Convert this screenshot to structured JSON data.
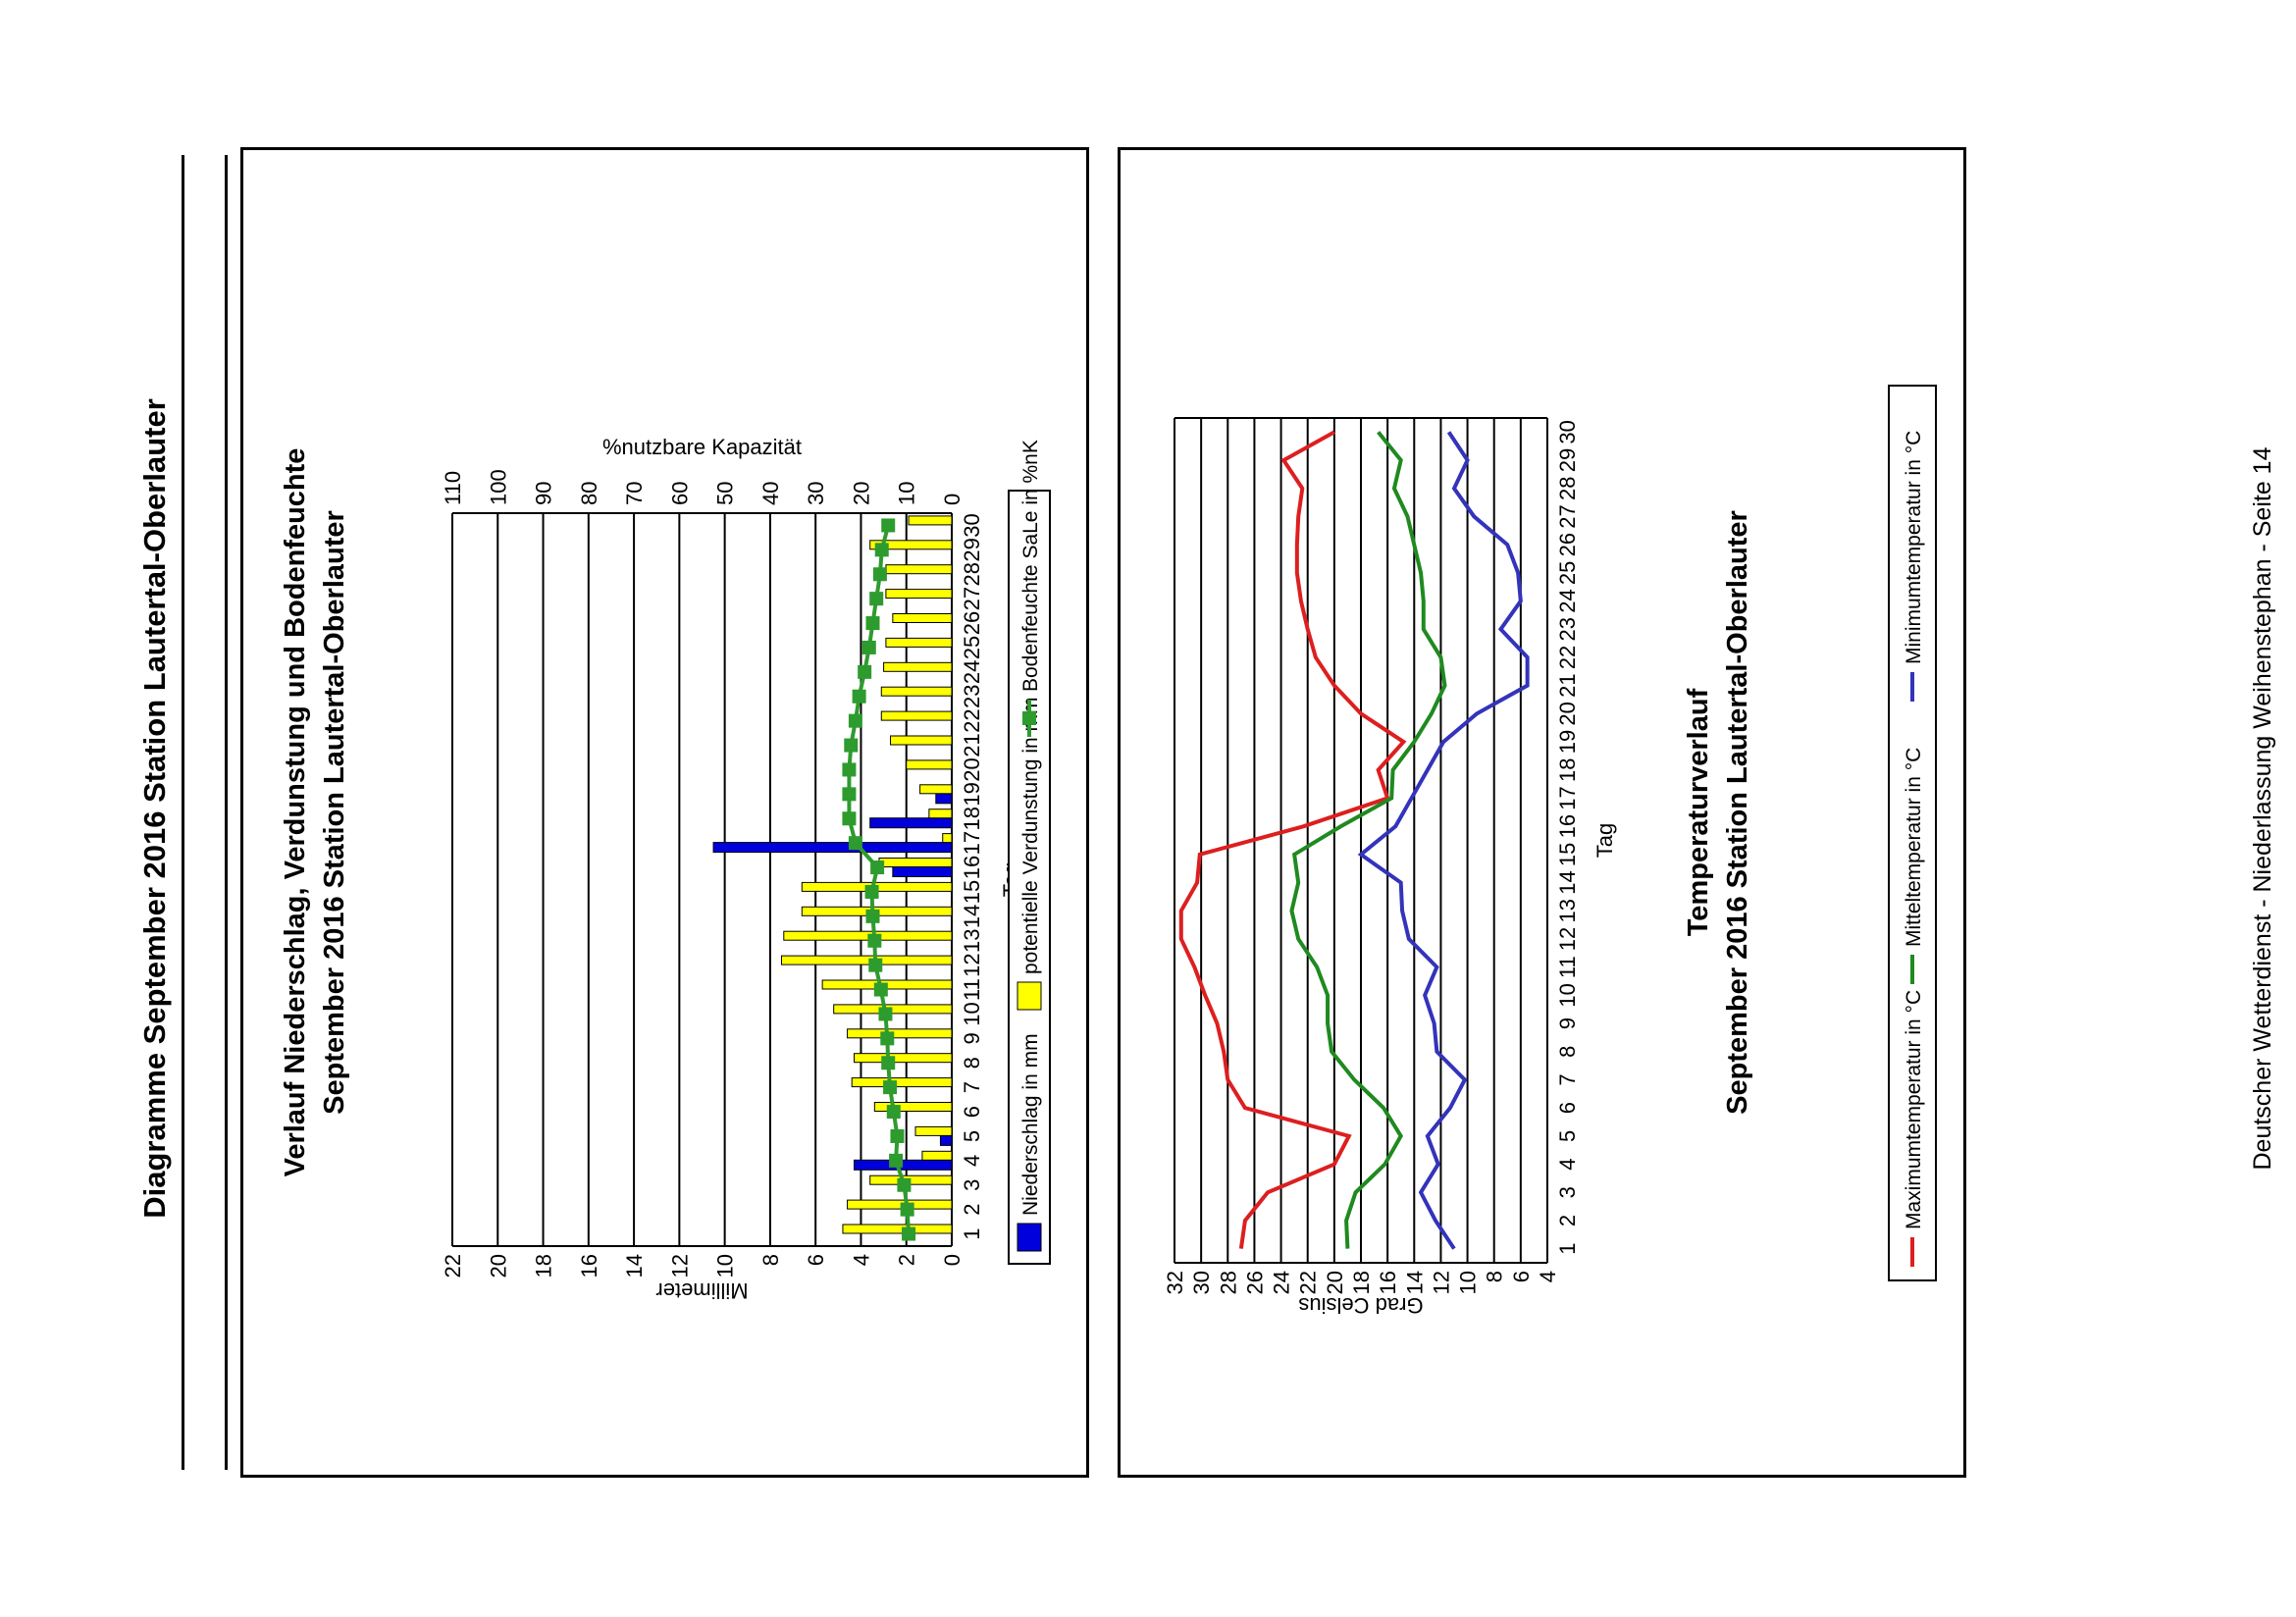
{
  "page": {
    "title": "Diagramme September 2016 Station Lautertal-Oberlauter",
    "footer": "Deutscher Wetterdienst - Niederlassung Weihenstephan - Seite 14"
  },
  "colors": {
    "precip": "#0000dd",
    "evap": "#ffff00",
    "soil": "#2e9b2e",
    "tmax": "#dd1f1f",
    "tmean": "#1f8a1f",
    "tmin": "#3333bb"
  },
  "chart_data": [
    {
      "type": "bar",
      "title": "Verlauf Niederschlag, Verdunstung und Bodenfeuchte",
      "subtitle": "September 2016 Station Lautertal-Oberlauter",
      "xlabel": "Tag",
      "ylabel": "Millimeter",
      "y2label": "%nutzbare Kapazität",
      "ylim": [
        0,
        22
      ],
      "yticks": [
        0,
        2,
        4,
        6,
        8,
        10,
        12,
        14,
        16,
        18,
        20,
        22
      ],
      "y2lim": [
        0,
        110
      ],
      "y2ticks": [
        0,
        10,
        20,
        30,
        40,
        50,
        60,
        70,
        80,
        90,
        100,
        110
      ],
      "grid": true,
      "legend_position": "bottom",
      "categories": [
        "1",
        "2",
        "3",
        "4",
        "5",
        "6",
        "7",
        "8",
        "9",
        "10",
        "11",
        "12",
        "13",
        "14",
        "15",
        "16",
        "17",
        "18",
        "19",
        "20",
        "21",
        "22",
        "23",
        "24",
        "25",
        "26",
        "27",
        "28",
        "29",
        "30"
      ],
      "series": [
        {
          "name": "Niederschlag in mm",
          "kind": "bar",
          "values": [
            0,
            0,
            0,
            4.3,
            0.5,
            0,
            0,
            0,
            0,
            0,
            0,
            0,
            0,
            0,
            0,
            2.6,
            10.5,
            3.6,
            0.7,
            0,
            0,
            0,
            0,
            0,
            0,
            0,
            0,
            0,
            0,
            0
          ]
        },
        {
          "name": "potentielle Verdunstung in mm",
          "kind": "bar",
          "values": [
            4.8,
            4.6,
            3.6,
            1.3,
            1.6,
            3.4,
            4.4,
            4.3,
            4.6,
            5.2,
            5.7,
            7.5,
            7.4,
            6.6,
            6.6,
            3.2,
            0.4,
            1.0,
            1.4,
            2.0,
            2.7,
            3.1,
            3.1,
            3.0,
            2.9,
            2.6,
            2.9,
            2.9,
            3.6,
            1.9
          ]
        },
        {
          "name": "Bodenfeuchte SaLe in %nK",
          "kind": "line",
          "axis": "y2",
          "values": [
            9.5,
            9.8,
            10.5,
            12.3,
            12.0,
            12.8,
            13.6,
            14.0,
            14.2,
            14.6,
            15.6,
            16.8,
            17.0,
            17.4,
            17.6,
            16.4,
            21.2,
            22.6,
            22.6,
            22.6,
            22.2,
            21.2,
            20.4,
            19.2,
            18.2,
            17.4,
            16.6,
            15.8,
            15.4,
            14.0
          ]
        }
      ]
    },
    {
      "type": "line",
      "title": "Temperaturverlauf",
      "subtitle": "September 2016 Station Lautertal-Oberlauter",
      "xlabel": "Tag",
      "ylabel": "Grad Celsius",
      "ylim": [
        4,
        32
      ],
      "yticks": [
        4,
        6,
        8,
        10,
        12,
        14,
        16,
        18,
        20,
        22,
        24,
        26,
        28,
        30,
        32
      ],
      "grid": true,
      "legend_position": "bottom",
      "categories": [
        "1",
        "2",
        "3",
        "4",
        "5",
        "6",
        "7",
        "8",
        "9",
        "10",
        "11",
        "12",
        "13",
        "14",
        "15",
        "16",
        "17",
        "18",
        "19",
        "20",
        "21",
        "22",
        "23",
        "24",
        "25",
        "26",
        "27",
        "28",
        "29",
        "30"
      ],
      "series": [
        {
          "name": "Maximumtemperatur in °C",
          "values": [
            27.0,
            26.7,
            25.0,
            20.0,
            18.9,
            26.7,
            28.0,
            28.3,
            28.8,
            29.7,
            30.5,
            31.5,
            31.5,
            30.3,
            30.1,
            22.3,
            16.0,
            16.7,
            14.8,
            18.0,
            20.0,
            21.4,
            22.0,
            22.5,
            22.8,
            22.8,
            22.7,
            22.4,
            23.8,
            20.0
          ]
        },
        {
          "name": "Mitteltemperatur in °C",
          "values": [
            19.0,
            19.1,
            18.4,
            16.2,
            15.0,
            16.3,
            18.5,
            20.2,
            20.5,
            20.5,
            21.3,
            22.7,
            23.2,
            22.7,
            23.0,
            19.5,
            15.7,
            15.6,
            14.0,
            12.7,
            11.7,
            12.0,
            13.3,
            13.3,
            13.5,
            14.0,
            14.5,
            15.5,
            15.0,
            16.7
          ]
        },
        {
          "name": "Minimumtemperatur in °C",
          "values": [
            11.0,
            12.4,
            13.5,
            12.2,
            13.0,
            11.3,
            10.2,
            12.3,
            12.5,
            13.2,
            12.3,
            14.4,
            14.9,
            15.0,
            18.0,
            15.4,
            14.2,
            13.0,
            11.8,
            9.3,
            5.5,
            5.5,
            7.5,
            6.0,
            6.2,
            7.0,
            9.5,
            11.0,
            10.0,
            11.4
          ]
        }
      ]
    }
  ]
}
